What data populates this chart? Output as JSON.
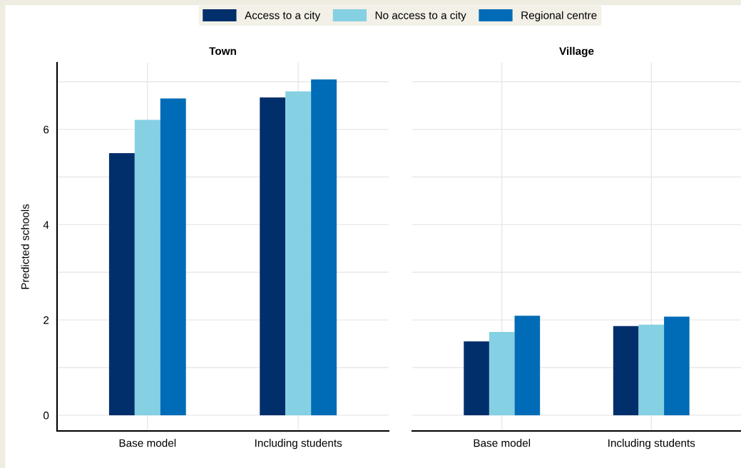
{
  "chart_data": [
    {
      "type": "bar",
      "title": "Town",
      "ylabel": "Predicted schools",
      "categories": [
        "Base model",
        "Including students"
      ],
      "series": [
        {
          "name": "Access to a city",
          "color": "#002f6c",
          "values": [
            5.5,
            6.67
          ]
        },
        {
          "name": "No access to a city",
          "color": "#85d0e3",
          "values": [
            6.2,
            6.8
          ]
        },
        {
          "name": "Regional centre",
          "color": "#006bb6",
          "values": [
            6.65,
            7.05
          ]
        }
      ],
      "ylim": [
        -0.33,
        7.4
      ],
      "yticks": [
        0,
        {
          "value": 1,
          "label": null
        },
        2,
        {
          "value": 3,
          "label": null
        },
        4,
        {
          "value": 5,
          "label": null
        },
        6,
        {
          "value": 7,
          "label": null
        }
      ],
      "grid": true,
      "legend": "top"
    },
    {
      "type": "bar",
      "title": "Village",
      "categories": [
        "Base model",
        "Including students"
      ],
      "series": [
        {
          "color": "#002f6c",
          "values": [
            1.55,
            1.87
          ]
        },
        {
          "color": "#85d0e3",
          "values": [
            1.75,
            1.9
          ]
        },
        {
          "color": "#006bb6",
          "values": [
            2.09,
            2.07
          ]
        }
      ],
      "ylim": [
        -0.33,
        7.4
      ],
      "yticks": [
        0,
        {
          "value": 1,
          "label": null
        },
        2,
        {
          "value": 3,
          "label": null
        },
        4,
        {
          "value": 5,
          "label": null
        },
        6,
        {
          "value": 7,
          "label": null
        }
      ],
      "grid": true,
      "tick_labels": "x"
    }
  ]
}
